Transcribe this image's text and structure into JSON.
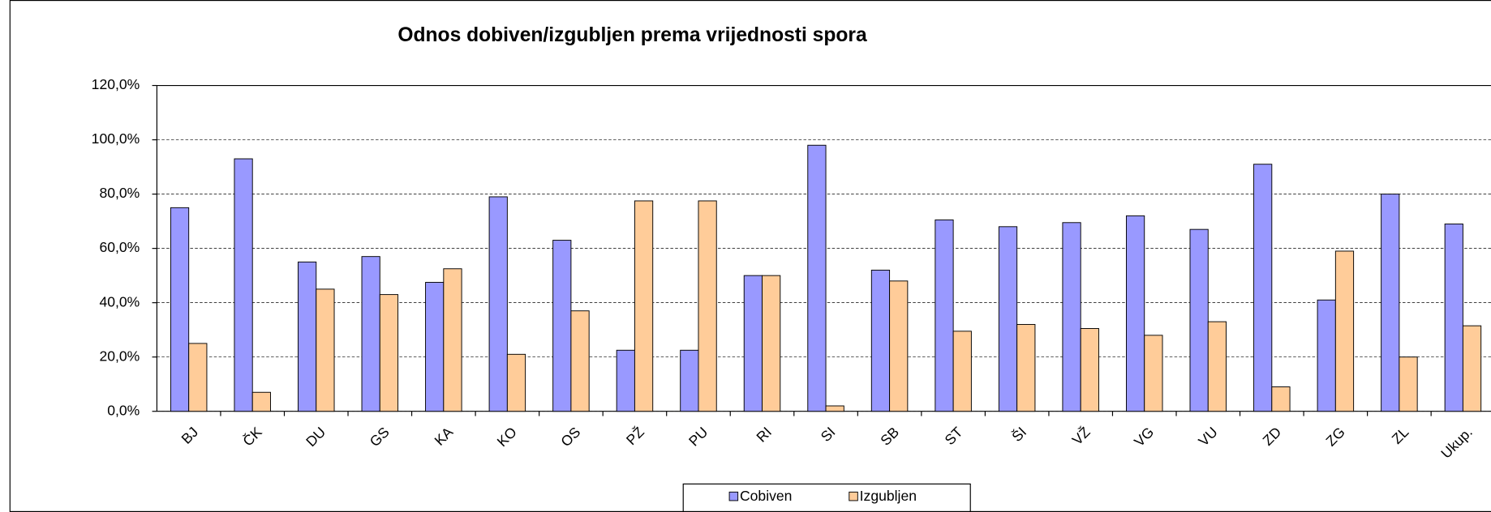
{
  "chart_data": {
    "type": "bar",
    "title": "Odnos dobiven/izgubljen prema vrijednosti spora",
    "categories": [
      "BJ",
      "ČK",
      "DU",
      "GS",
      "KA",
      "KO",
      "OS",
      "PŽ",
      "PU",
      "RI",
      "SI",
      "SB",
      "ST",
      "ŠI",
      "VŽ",
      "VG",
      "VU",
      "ZD",
      "ZG",
      "ZL",
      "Ukup."
    ],
    "series": [
      {
        "name": "Cobiven",
        "color": "#9999ff",
        "values": [
          75,
          93,
          55,
          57,
          47.5,
          79,
          63,
          22.5,
          22.5,
          50,
          98,
          52,
          70.5,
          68,
          69.5,
          72,
          67,
          91,
          41,
          80,
          69
        ]
      },
      {
        "name": "Izgubljen",
        "color": "#ffcc99",
        "values": [
          25,
          7,
          45,
          43,
          52.5,
          21,
          37,
          77.5,
          77.5,
          50,
          2,
          48,
          29.5,
          32,
          30.5,
          28,
          33,
          9,
          59,
          20,
          31.5
        ]
      }
    ],
    "ylim": [
      0,
      120
    ],
    "yticks": [
      {
        "value": 0,
        "label": "0,0%"
      },
      {
        "value": 20,
        "label": "20,0%"
      },
      {
        "value": 40,
        "label": "40,0%"
      },
      {
        "value": 60,
        "label": "60,0%"
      },
      {
        "value": 80,
        "label": "80,0%"
      },
      {
        "value": 100,
        "label": "100,0%"
      },
      {
        "value": 120,
        "label": "120,0%"
      }
    ],
    "grid": true
  }
}
